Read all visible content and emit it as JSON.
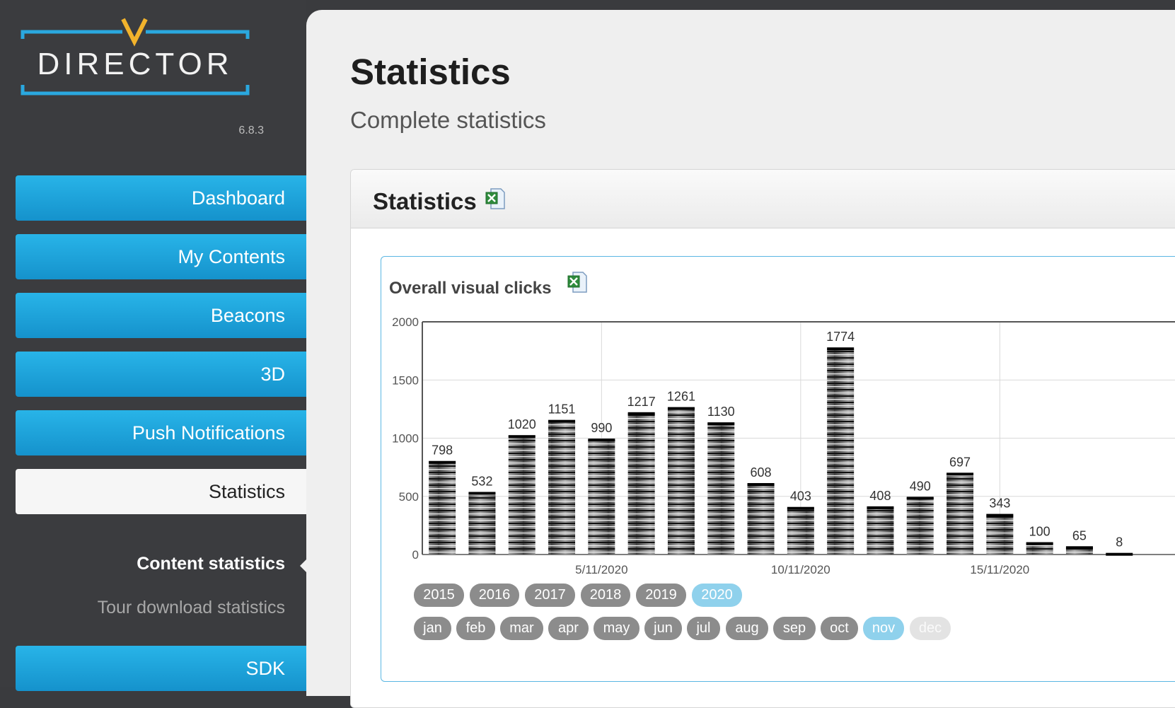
{
  "app": {
    "logo_text": "DIRECTOR",
    "version": "6.8.3"
  },
  "nav": {
    "items": [
      {
        "label": "Dashboard"
      },
      {
        "label": "My Contents"
      },
      {
        "label": "Beacons"
      },
      {
        "label": "3D"
      },
      {
        "label": "Push Notifications"
      },
      {
        "label": "Statistics",
        "active": true
      },
      {
        "label": "SDK"
      }
    ],
    "sub_items": [
      "Content statistics",
      "Tour download statistics"
    ],
    "active_sub_item": "Content statistics"
  },
  "page": {
    "title": "Statistics",
    "subtitle": "Complete statistics"
  },
  "panel": {
    "title": "Statistics",
    "export_icon": "excel-icon"
  },
  "chart_card": {
    "title": "Overall visual clicks",
    "export_icon": "excel-icon"
  },
  "chart_data": {
    "type": "bar",
    "x": [
      "1/11/2020",
      "2/11/2020",
      "3/11/2020",
      "4/11/2020",
      "5/11/2020",
      "6/11/2020",
      "7/11/2020",
      "8/11/2020",
      "9/11/2020",
      "10/11/2020",
      "11/11/2020",
      "12/11/2020",
      "13/11/2020",
      "14/11/2020",
      "15/11/2020",
      "16/11/2020",
      "17/11/2020",
      "18/11/2020"
    ],
    "values": [
      798,
      532,
      1020,
      1151,
      990,
      1217,
      1261,
      1130,
      608,
      403,
      1774,
      408,
      490,
      697,
      343,
      100,
      65,
      8
    ],
    "data_labels": [
      "798",
      "532",
      "1020",
      "1151",
      "990",
      "1217",
      "1261",
      "1130",
      "608",
      "403",
      "1774",
      "408",
      "490",
      "697",
      "343",
      "100",
      "65",
      "8"
    ],
    "x_tick_labels": [
      "5/11/2020",
      "10/11/2020",
      "15/11/2020"
    ],
    "y_ticks": [
      0,
      500,
      1000,
      1500,
      2000
    ],
    "ylim": [
      0,
      2000
    ],
    "grid": true,
    "bar_style": "stacked grey bands"
  },
  "filters": {
    "years": [
      "2015",
      "2016",
      "2017",
      "2018",
      "2019",
      "2020"
    ],
    "selected_year": "2020",
    "months": [
      "jan",
      "feb",
      "mar",
      "apr",
      "may",
      "jun",
      "jul",
      "aug",
      "sep",
      "oct",
      "nov",
      "dec"
    ],
    "selected_month": "nov",
    "disabled_months": [
      "dec"
    ]
  },
  "colors": {
    "accent": "#1ea6df",
    "sidebar_bg": "#3b3c3f",
    "pill": "#8c8c8c",
    "pill_selected": "#8fd1ec",
    "chart_border": "#5bb7e3"
  }
}
